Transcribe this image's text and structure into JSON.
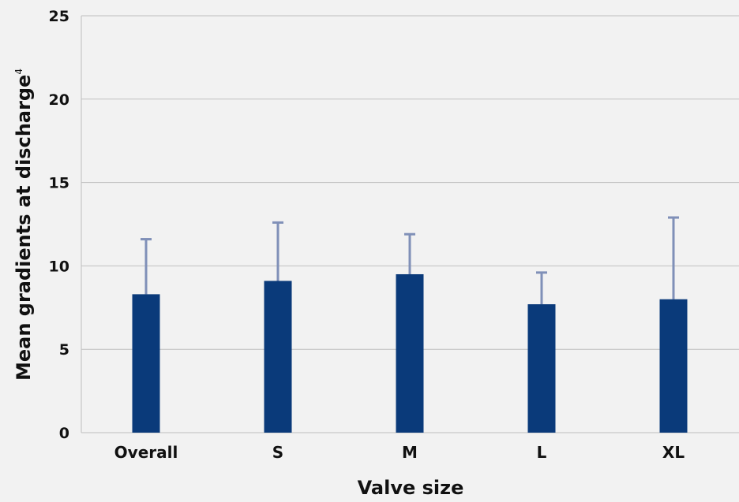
{
  "chart_data": {
    "type": "bar",
    "title": "",
    "xlabel": "Valve size",
    "ylabel": "Mean gradients at discharge",
    "ylabel_superscript": "4",
    "categories": [
      "Overall",
      "S",
      "M",
      "L",
      "XL"
    ],
    "series": [
      {
        "values": [
          8.3,
          9.1,
          9.5,
          7.7,
          8.0
        ],
        "error_upper": [
          11.6,
          12.6,
          11.9,
          9.6,
          12.9
        ]
      }
    ],
    "ylim": [
      0,
      25
    ],
    "yticks": [
      0,
      5,
      10,
      15,
      20,
      25
    ],
    "grid": true,
    "legend": "none",
    "colors": {
      "bar": "#0a3a7a",
      "error_bar": "#8090b8",
      "grid": "#bfbfbf",
      "background": "#f2f2f2"
    }
  }
}
